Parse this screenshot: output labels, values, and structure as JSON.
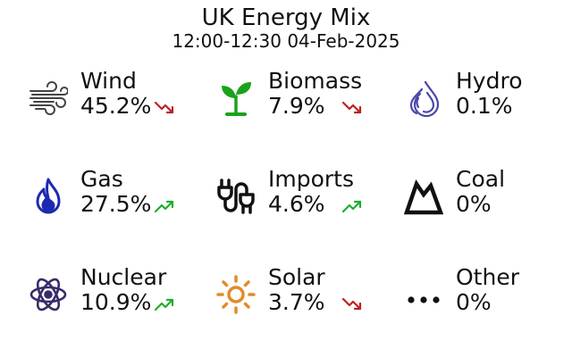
{
  "header": {
    "title": "UK Energy Mix",
    "subtitle": "12:00-12:30 04-Feb-2025"
  },
  "colors": {
    "wind": "#444444",
    "biomass": "#1aa31a",
    "hydro": "#4a4aa8",
    "gas": "#1c2ab0",
    "imports": "#111111",
    "coal": "#111111",
    "nuclear": "#3a2a6a",
    "solar": "#e38a2a",
    "other": "#111111",
    "trend_up": "#1fae2f",
    "trend_down": "#c02020"
  },
  "sources": {
    "wind": {
      "label": "Wind",
      "value": "45.2%",
      "icon": "wind-icon",
      "trend": "down"
    },
    "biomass": {
      "label": "Biomass",
      "value": "7.9%",
      "icon": "sprout-icon",
      "trend": "down"
    },
    "hydro": {
      "label": "Hydro",
      "value": "0.1%",
      "icon": "water-drop-icon",
      "trend": "none"
    },
    "gas": {
      "label": "Gas",
      "value": "27.5%",
      "icon": "flame-icon",
      "trend": "up"
    },
    "imports": {
      "label": "Imports",
      "value": "4.6%",
      "icon": "power-plug-icon",
      "trend": "up"
    },
    "coal": {
      "label": "Coal",
      "value": "0%",
      "icon": "mountain-icon",
      "trend": "none"
    },
    "nuclear": {
      "label": "Nuclear",
      "value": "10.9%",
      "icon": "atom-icon",
      "trend": "up"
    },
    "solar": {
      "label": "Solar",
      "value": "3.7%",
      "icon": "sun-icon",
      "trend": "down"
    },
    "other": {
      "label": "Other",
      "value": "0%",
      "icon": "ellipsis-icon",
      "trend": "none"
    }
  }
}
